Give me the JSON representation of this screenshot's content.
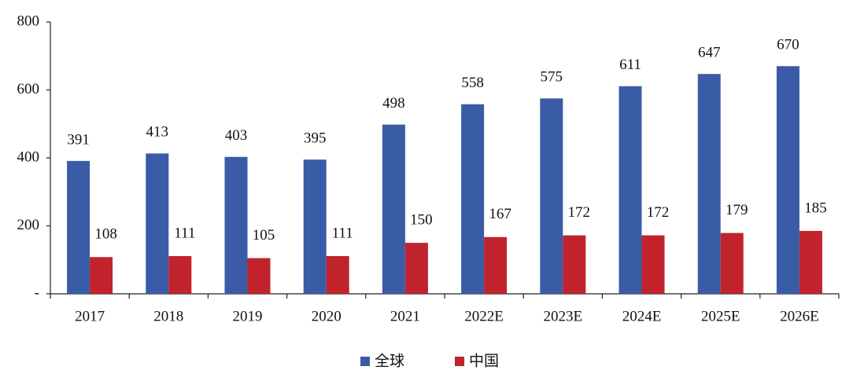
{
  "chart_data": {
    "type": "bar",
    "categories": [
      "2017",
      "2018",
      "2019",
      "2020",
      "2021",
      "2022E",
      "2023E",
      "2024E",
      "2025E",
      "2026E"
    ],
    "series": [
      {
        "name": "全球",
        "color": "#3a5ca6",
        "values": [
          391,
          413,
          403,
          395,
          498,
          558,
          575,
          611,
          647,
          670
        ]
      },
      {
        "name": "中国",
        "color": "#c0232c",
        "values": [
          108,
          111,
          105,
          111,
          150,
          167,
          172,
          172,
          179,
          185
        ]
      }
    ],
    "ylim": [
      0,
      800
    ],
    "yticks": [
      {
        "value": 0,
        "label": "-"
      },
      200,
      400,
      600,
      800
    ],
    "legend": "bottom"
  }
}
